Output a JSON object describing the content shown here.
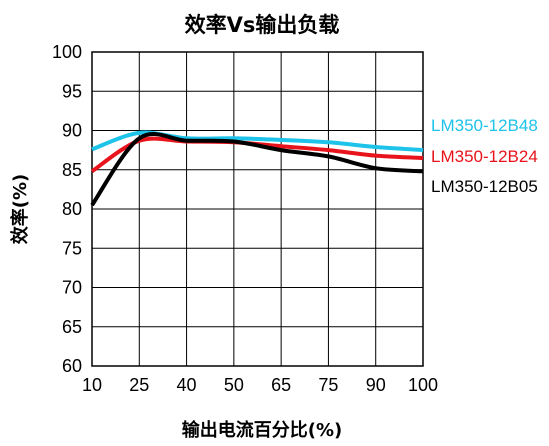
{
  "chart_data": {
    "type": "line",
    "title": "效率Vs输出负载",
    "xlabel": "输出电流百分比(%)",
    "ylabel": "效率(%)",
    "categories": [
      "10",
      "25",
      "40",
      "50",
      "65",
      "75",
      "90",
      "100"
    ],
    "ylim": [
      60,
      100
    ],
    "yticks": [
      60,
      65,
      70,
      75,
      80,
      85,
      90,
      95,
      100
    ],
    "grid": "vertical and horizontal",
    "legend_placement": "right, at line ends",
    "series": [
      {
        "name": "LM350-12B48",
        "color": "#1ec3ea",
        "values": [
          87.6,
          89.7,
          89.0,
          89.0,
          88.8,
          88.5,
          87.9,
          87.5
        ]
      },
      {
        "name": "LM350-12B24",
        "color": "#e8131b",
        "values": [
          84.8,
          88.7,
          88.6,
          88.5,
          88.0,
          87.5,
          86.8,
          86.5
        ]
      },
      {
        "name": "LM350-12B05",
        "color": "#000000",
        "values": [
          80.5,
          89.0,
          88.7,
          88.6,
          87.5,
          86.7,
          85.2,
          84.8
        ]
      }
    ]
  }
}
